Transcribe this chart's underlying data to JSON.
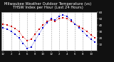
{
  "title": "Milwaukee Weather Outdoor Temperature (vs) THSW Index per Hour (Last 24 Hours)",
  "title_fontsize": 3.8,
  "background_color": "#111111",
  "plot_bg_color": "#ffffff",
  "hours": [
    0,
    1,
    2,
    3,
    4,
    5,
    6,
    7,
    8,
    9,
    10,
    11,
    12,
    13,
    14,
    15,
    16,
    17,
    18,
    19,
    20,
    21,
    22,
    23
  ],
  "temp": [
    42,
    40,
    38,
    35,
    30,
    22,
    16,
    18,
    26,
    34,
    40,
    46,
    48,
    46,
    50,
    52,
    50,
    46,
    42,
    38,
    35,
    30,
    25,
    20
  ],
  "thsw": [
    36,
    34,
    30,
    26,
    20,
    12,
    4,
    6,
    16,
    26,
    36,
    44,
    50,
    48,
    54,
    56,
    54,
    48,
    42,
    36,
    30,
    24,
    18,
    14
  ],
  "temp_color": "#cc0000",
  "thsw_color": "#0000cc",
  "ylim_min": 0,
  "ylim_max": 60,
  "ytick_vals": [
    10,
    20,
    30,
    40,
    50,
    60
  ],
  "ytick_labels": [
    "10",
    "20",
    "30",
    "40",
    "50",
    "60"
  ],
  "xtick_positions": [
    0,
    2,
    4,
    6,
    8,
    10,
    12,
    14,
    16,
    18,
    20,
    22
  ],
  "xtick_labels": [
    "12",
    "2",
    "4",
    "6",
    "8",
    "10",
    "12",
    "2",
    "4",
    "6",
    "8",
    "10"
  ],
  "ylabel_fontsize": 3.0,
  "xlabel_fontsize": 2.8,
  "grid_color": "#888888",
  "marker_size": 1.8,
  "line_width": 0.5
}
